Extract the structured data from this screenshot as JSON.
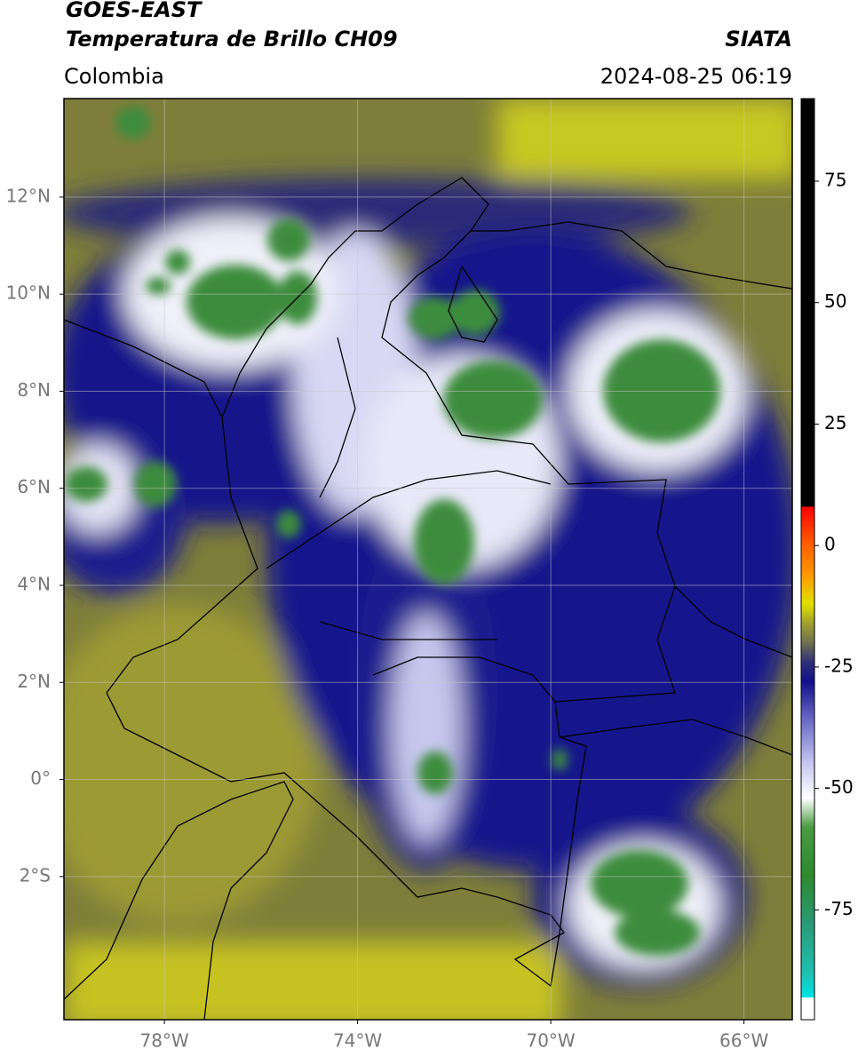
{
  "header": {
    "title": "GOES-EAST",
    "subtitle": "Temperatura de Brillo CH09",
    "source": "SIATA",
    "region": "Colombia",
    "datetime": "2024-08-25 06:19"
  },
  "map": {
    "xlim": [
      -80.08,
      -65.0
    ],
    "ylim": [
      -4.95,
      14.03
    ],
    "xticks": [
      {
        "value": -78,
        "label": "78°W"
      },
      {
        "value": -74,
        "label": "74°W"
      },
      {
        "value": -70,
        "label": "70°W"
      },
      {
        "value": -66,
        "label": "66°W"
      }
    ],
    "yticks": [
      {
        "value": 12,
        "label": "12°N"
      },
      {
        "value": 10,
        "label": "10°N"
      },
      {
        "value": 8,
        "label": "8°N"
      },
      {
        "value": 6,
        "label": "6°N"
      },
      {
        "value": 4,
        "label": "4°N"
      },
      {
        "value": 2,
        "label": "2°N"
      },
      {
        "value": 0,
        "label": "0°"
      },
      {
        "value": -2,
        "label": "2°S"
      }
    ],
    "grid": true
  },
  "colorbar": {
    "lim": [
      -97.6,
      92
    ],
    "ticks": [
      75,
      50,
      25,
      0,
      -25,
      -50,
      -75
    ],
    "stops": [
      [
        -97.6,
        "#ffffff"
      ],
      [
        -93,
        "#ffffff"
      ],
      [
        -93,
        "#00e5e5"
      ],
      [
        -88,
        "#20c0b0"
      ],
      [
        -78,
        "#2a9a78"
      ],
      [
        -68,
        "#2e8a2e"
      ],
      [
        -58,
        "#4a9a40"
      ],
      [
        -52,
        "#ffffff"
      ],
      [
        -45,
        "#c8c8f0"
      ],
      [
        -35,
        "#6060c0"
      ],
      [
        -28,
        "#10108a"
      ],
      [
        -24,
        "#303078"
      ],
      [
        -20,
        "#707050"
      ],
      [
        -16,
        "#a0a030"
      ],
      [
        -12,
        "#e0e000"
      ],
      [
        -6,
        "#ff9900"
      ],
      [
        0,
        "#ff6000"
      ],
      [
        8,
        "#ff0000"
      ],
      [
        8,
        "#000000"
      ],
      [
        92,
        "#000000"
      ]
    ]
  }
}
